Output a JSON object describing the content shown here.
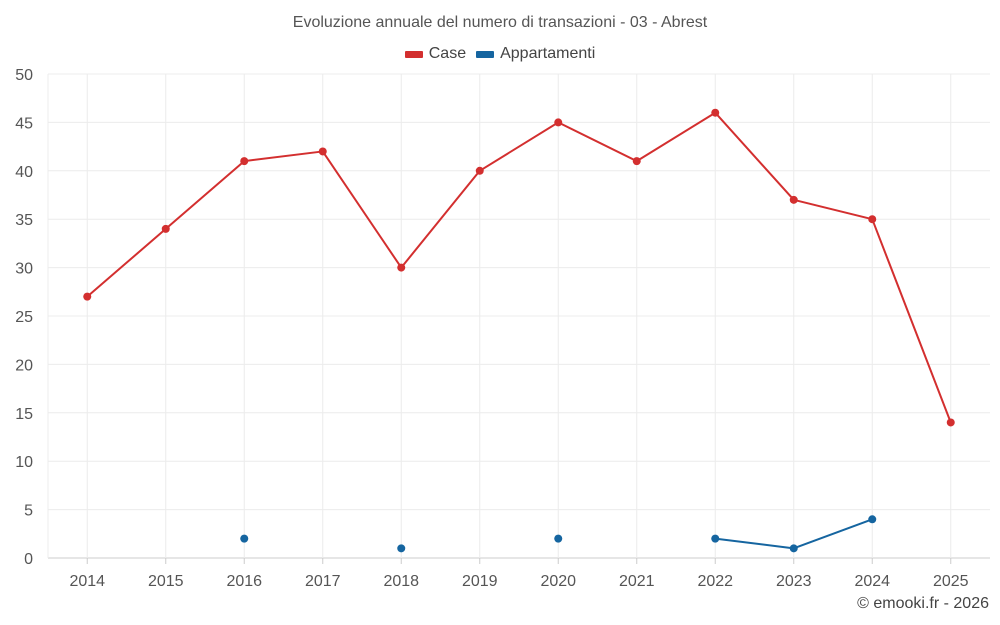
{
  "chart_data": {
    "type": "line",
    "title": "Evoluzione annuale del numero di transazioni - 03 - Abrest",
    "categories": [
      "2014",
      "2015",
      "2016",
      "2017",
      "2018",
      "2019",
      "2020",
      "2021",
      "2022",
      "2023",
      "2024",
      "2025"
    ],
    "ylim": [
      0,
      50
    ],
    "yticks": [
      0,
      5,
      10,
      15,
      20,
      25,
      30,
      35,
      40,
      45,
      50
    ],
    "grid": true,
    "legend_position": "top-center",
    "series": [
      {
        "name": "Case",
        "color": "#d32f2f",
        "values": [
          27,
          34,
          41,
          42,
          30,
          40,
          45,
          41,
          46,
          37,
          35,
          14
        ]
      },
      {
        "name": "Appartamenti",
        "color": "#1565a0",
        "values": [
          null,
          null,
          2,
          null,
          1,
          null,
          2,
          null,
          2,
          1,
          4,
          null
        ]
      }
    ]
  },
  "footer": {
    "credit": "© emooki.fr - 2026"
  }
}
